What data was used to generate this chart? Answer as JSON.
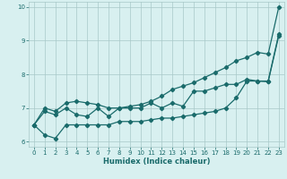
{
  "xlabel": "Humidex (Indice chaleur)",
  "x": [
    0,
    1,
    2,
    3,
    4,
    5,
    6,
    7,
    8,
    9,
    10,
    11,
    12,
    13,
    14,
    15,
    16,
    17,
    18,
    19,
    20,
    21,
    22,
    23
  ],
  "y_bottom": [
    6.5,
    6.2,
    6.1,
    6.5,
    6.5,
    6.5,
    6.5,
    6.5,
    6.6,
    6.6,
    6.6,
    6.65,
    6.7,
    6.7,
    6.75,
    6.8,
    6.85,
    6.9,
    7.0,
    7.3,
    7.8,
    7.8,
    7.8,
    9.2
  ],
  "y_middle": [
    6.5,
    6.9,
    6.8,
    7.0,
    6.8,
    6.75,
    7.0,
    6.75,
    7.0,
    7.0,
    7.0,
    7.15,
    7.0,
    7.15,
    7.05,
    7.5,
    7.5,
    7.6,
    7.7,
    7.7,
    7.85,
    7.8,
    7.78,
    9.15
  ],
  "y_top": [
    6.5,
    7.0,
    6.9,
    7.15,
    7.2,
    7.15,
    7.1,
    7.0,
    7.0,
    7.05,
    7.1,
    7.2,
    7.35,
    7.55,
    7.65,
    7.75,
    7.9,
    8.05,
    8.2,
    8.4,
    8.5,
    8.65,
    8.6,
    10.0
  ],
  "line_color": "#1a6b6b",
  "bg_color": "#d8f0f0",
  "grid_color": "#a8c8c8",
  "marker": "D",
  "marker_size": 2.2,
  "lw": 0.9,
  "ylim": [
    5.85,
    10.15
  ],
  "xlim": [
    -0.5,
    23.5
  ],
  "yticks": [
    6,
    7,
    8,
    9,
    10
  ],
  "xticks": [
    0,
    1,
    2,
    3,
    4,
    5,
    6,
    7,
    8,
    9,
    10,
    11,
    12,
    13,
    14,
    15,
    16,
    17,
    18,
    19,
    20,
    21,
    22,
    23
  ]
}
